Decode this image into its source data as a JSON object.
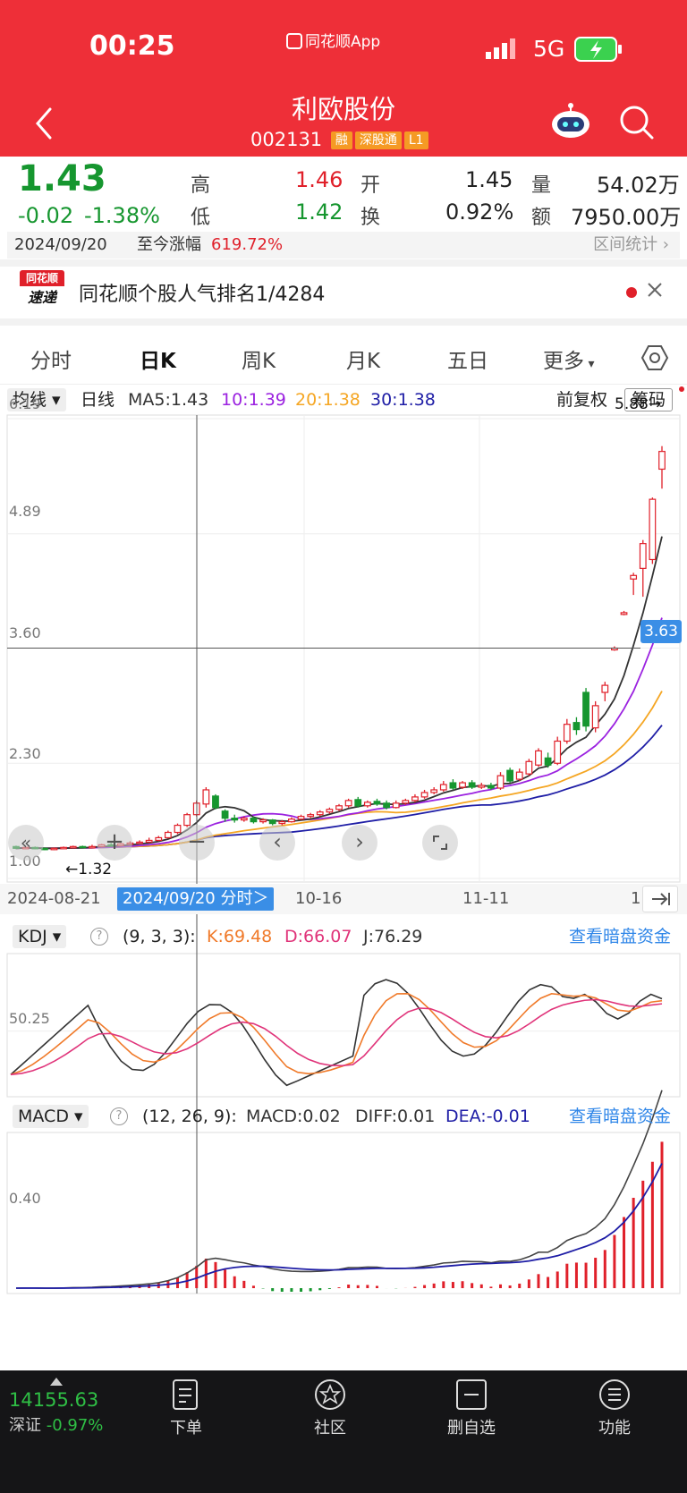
{
  "status_bar": {
    "time": "00:25",
    "app_name": "同花顺App",
    "network": "5G"
  },
  "header": {
    "title": "利欧股份",
    "code": "002131",
    "badges": [
      "融",
      "深股通",
      "L1"
    ]
  },
  "quote": {
    "price": "1.43",
    "change": "-0.02",
    "change_pct": "-1.38%",
    "high_label": "高",
    "high": "1.46",
    "low_label": "低",
    "low": "1.42",
    "open_label": "开",
    "open": "1.45",
    "turnover_label": "换",
    "turnover": "0.92%",
    "volume_label": "量",
    "volume": "54.02万",
    "amount_label": "额",
    "amount": "7950.00万",
    "date": "2024/09/20",
    "gain_label": "至今涨幅",
    "gain": "619.72%",
    "interval_stats": "区间统计"
  },
  "banner": {
    "logo_top": "同花顺",
    "logo_bottom": "速递",
    "text": "同花顺个股人气排名1/4284"
  },
  "tabs": [
    "分时",
    "日K",
    "周K",
    "月K",
    "五日",
    "更多"
  ],
  "ma_bar": {
    "selector": "均线",
    "period": "日线",
    "ma5": "MA5:1.43",
    "ma10": "10:1.39",
    "ma20": "20:1.38",
    "ma30": "30:1.38",
    "adjust": "前复权",
    "chips": "筹码"
  },
  "price_axis": {
    "labels": [
      "6.19",
      "4.89",
      "3.60",
      "2.30",
      "1.00"
    ],
    "crosshair_value": "3.63",
    "max_label": "5.88→",
    "min_label": "←1.32"
  },
  "date_axis": {
    "left": "2024-08-21",
    "selected": "2024/09/20 分时＞",
    "mid": "10-16",
    "right": "11-11",
    "edge": "1"
  },
  "kdj": {
    "selector": "KDJ",
    "params": "(9, 3, 3):",
    "k": "K:69.48",
    "d": "D:66.07",
    "j": "J:76.29",
    "link": "查看暗盘资金",
    "level": "50.25"
  },
  "macd": {
    "selector": "MACD",
    "params": "(12, 26, 9):",
    "macd": "MACD:0.02",
    "diff": "DIFF:0.01",
    "dea": "DEA:-0.01",
    "link": "查看暗盘资金",
    "level": "0.40"
  },
  "bottom": {
    "index_value": "14155.63",
    "index_name": "深证",
    "index_change": "-0.97%",
    "nav": [
      "下单",
      "社区",
      "删自选",
      "功能"
    ]
  },
  "colors": {
    "header_red": "#ee2f38",
    "up": "#e0202a",
    "down": "#16962f",
    "ma5": "#333333",
    "ma10": "#9b22e0",
    "ma20": "#f5a623",
    "ma30": "#1f1ea6",
    "accent_blue": "#2f86e8"
  },
  "chart_data": {
    "type": "candlestick",
    "description_y_range": [
      1.0,
      6.19
    ],
    "candles": [
      {
        "o": 1.36,
        "c": 1.34,
        "h": 1.37,
        "l": 1.33
      },
      {
        "o": 1.34,
        "c": 1.35,
        "h": 1.36,
        "l": 1.33
      },
      {
        "o": 1.35,
        "c": 1.34,
        "h": 1.36,
        "l": 1.33
      },
      {
        "o": 1.34,
        "c": 1.33,
        "h": 1.35,
        "l": 1.32
      },
      {
        "o": 1.33,
        "c": 1.34,
        "h": 1.35,
        "l": 1.32
      },
      {
        "o": 1.34,
        "c": 1.35,
        "h": 1.36,
        "l": 1.33
      },
      {
        "o": 1.35,
        "c": 1.36,
        "h": 1.37,
        "l": 1.34
      },
      {
        "o": 1.36,
        "c": 1.35,
        "h": 1.37,
        "l": 1.34
      },
      {
        "o": 1.35,
        "c": 1.36,
        "h": 1.38,
        "l": 1.34
      },
      {
        "o": 1.36,
        "c": 1.38,
        "h": 1.39,
        "l": 1.35
      },
      {
        "o": 1.38,
        "c": 1.37,
        "h": 1.4,
        "l": 1.36
      },
      {
        "o": 1.37,
        "c": 1.39,
        "h": 1.4,
        "l": 1.36
      },
      {
        "o": 1.39,
        "c": 1.4,
        "h": 1.42,
        "l": 1.38
      },
      {
        "o": 1.4,
        "c": 1.41,
        "h": 1.43,
        "l": 1.39
      },
      {
        "o": 1.41,
        "c": 1.43,
        "h": 1.46,
        "l": 1.4
      },
      {
        "o": 1.43,
        "c": 1.46,
        "h": 1.48,
        "l": 1.42
      },
      {
        "o": 1.46,
        "c": 1.52,
        "h": 1.54,
        "l": 1.45
      },
      {
        "o": 1.52,
        "c": 1.6,
        "h": 1.62,
        "l": 1.5
      },
      {
        "o": 1.6,
        "c": 1.72,
        "h": 1.74,
        "l": 1.58
      },
      {
        "o": 1.72,
        "c": 1.85,
        "h": 1.88,
        "l": 1.7
      },
      {
        "o": 1.84,
        "c": 2.0,
        "h": 2.03,
        "l": 1.8
      },
      {
        "o": 1.93,
        "c": 1.8,
        "h": 1.95,
        "l": 1.78
      },
      {
        "o": 1.76,
        "c": 1.68,
        "h": 1.78,
        "l": 1.64
      },
      {
        "o": 1.68,
        "c": 1.66,
        "h": 1.72,
        "l": 1.63
      },
      {
        "o": 1.66,
        "c": 1.68,
        "h": 1.7,
        "l": 1.64
      },
      {
        "o": 1.68,
        "c": 1.64,
        "h": 1.7,
        "l": 1.62
      },
      {
        "o": 1.64,
        "c": 1.66,
        "h": 1.68,
        "l": 1.62
      },
      {
        "o": 1.66,
        "c": 1.62,
        "h": 1.67,
        "l": 1.6
      },
      {
        "o": 1.62,
        "c": 1.64,
        "h": 1.66,
        "l": 1.6
      },
      {
        "o": 1.64,
        "c": 1.67,
        "h": 1.69,
        "l": 1.63
      },
      {
        "o": 1.67,
        "c": 1.7,
        "h": 1.72,
        "l": 1.66
      },
      {
        "o": 1.7,
        "c": 1.72,
        "h": 1.74,
        "l": 1.68
      },
      {
        "o": 1.72,
        "c": 1.75,
        "h": 1.77,
        "l": 1.7
      },
      {
        "o": 1.75,
        "c": 1.78,
        "h": 1.8,
        "l": 1.73
      },
      {
        "o": 1.78,
        "c": 1.82,
        "h": 1.84,
        "l": 1.76
      },
      {
        "o": 1.82,
        "c": 1.88,
        "h": 1.9,
        "l": 1.8
      },
      {
        "o": 1.89,
        "c": 1.82,
        "h": 1.92,
        "l": 1.8
      },
      {
        "o": 1.82,
        "c": 1.86,
        "h": 1.88,
        "l": 1.8
      },
      {
        "o": 1.87,
        "c": 1.84,
        "h": 1.9,
        "l": 1.82
      },
      {
        "o": 1.85,
        "c": 1.8,
        "h": 1.88,
        "l": 1.78
      },
      {
        "o": 1.8,
        "c": 1.85,
        "h": 1.88,
        "l": 1.79
      },
      {
        "o": 1.85,
        "c": 1.88,
        "h": 1.9,
        "l": 1.83
      },
      {
        "o": 1.88,
        "c": 1.92,
        "h": 1.95,
        "l": 1.86
      },
      {
        "o": 1.92,
        "c": 1.97,
        "h": 2.0,
        "l": 1.9
      },
      {
        "o": 1.97,
        "c": 2.0,
        "h": 2.03,
        "l": 1.95
      },
      {
        "o": 2.0,
        "c": 2.06,
        "h": 2.1,
        "l": 1.98
      },
      {
        "o": 2.08,
        "c": 2.02,
        "h": 2.12,
        "l": 2.0
      },
      {
        "o": 2.03,
        "c": 2.08,
        "h": 2.1,
        "l": 2.01
      },
      {
        "o": 2.08,
        "c": 2.03,
        "h": 2.11,
        "l": 2.01
      },
      {
        "o": 2.03,
        "c": 2.05,
        "h": 2.08,
        "l": 2.01
      },
      {
        "o": 2.05,
        "c": 2.02,
        "h": 2.08,
        "l": 2.0
      },
      {
        "o": 2.02,
        "c": 2.16,
        "h": 2.2,
        "l": 2.0
      },
      {
        "o": 2.22,
        "c": 2.1,
        "h": 2.25,
        "l": 2.08
      },
      {
        "o": 2.12,
        "c": 2.2,
        "h": 2.24,
        "l": 2.1
      },
      {
        "o": 2.18,
        "c": 2.32,
        "h": 2.35,
        "l": 2.16
      },
      {
        "o": 2.28,
        "c": 2.44,
        "h": 2.47,
        "l": 2.26
      },
      {
        "o": 2.36,
        "c": 2.28,
        "h": 2.42,
        "l": 2.25
      },
      {
        "o": 2.3,
        "c": 2.55,
        "h": 2.6,
        "l": 2.28
      },
      {
        "o": 2.55,
        "c": 2.74,
        "h": 2.8,
        "l": 2.52
      },
      {
        "o": 2.76,
        "c": 2.68,
        "h": 2.82,
        "l": 2.62
      },
      {
        "o": 3.1,
        "c": 2.72,
        "h": 3.15,
        "l": 2.66
      },
      {
        "o": 2.7,
        "c": 2.95,
        "h": 3.0,
        "l": 2.65
      },
      {
        "o": 3.1,
        "c": 3.18,
        "h": 3.22,
        "l": 3.0
      },
      {
        "o": 3.58,
        "c": 3.6,
        "h": 3.62,
        "l": 3.57
      },
      {
        "o": 3.98,
        "c": 4.0,
        "h": 4.02,
        "l": 3.97
      },
      {
        "o": 4.38,
        "c": 4.42,
        "h": 4.45,
        "l": 4.2
      },
      {
        "o": 4.5,
        "c": 4.78,
        "h": 4.82,
        "l": 4.18
      },
      {
        "o": 4.6,
        "c": 5.28,
        "h": 5.3,
        "l": 4.55
      },
      {
        "o": 5.62,
        "c": 5.82,
        "h": 5.88,
        "l": 5.4
      }
    ]
  }
}
